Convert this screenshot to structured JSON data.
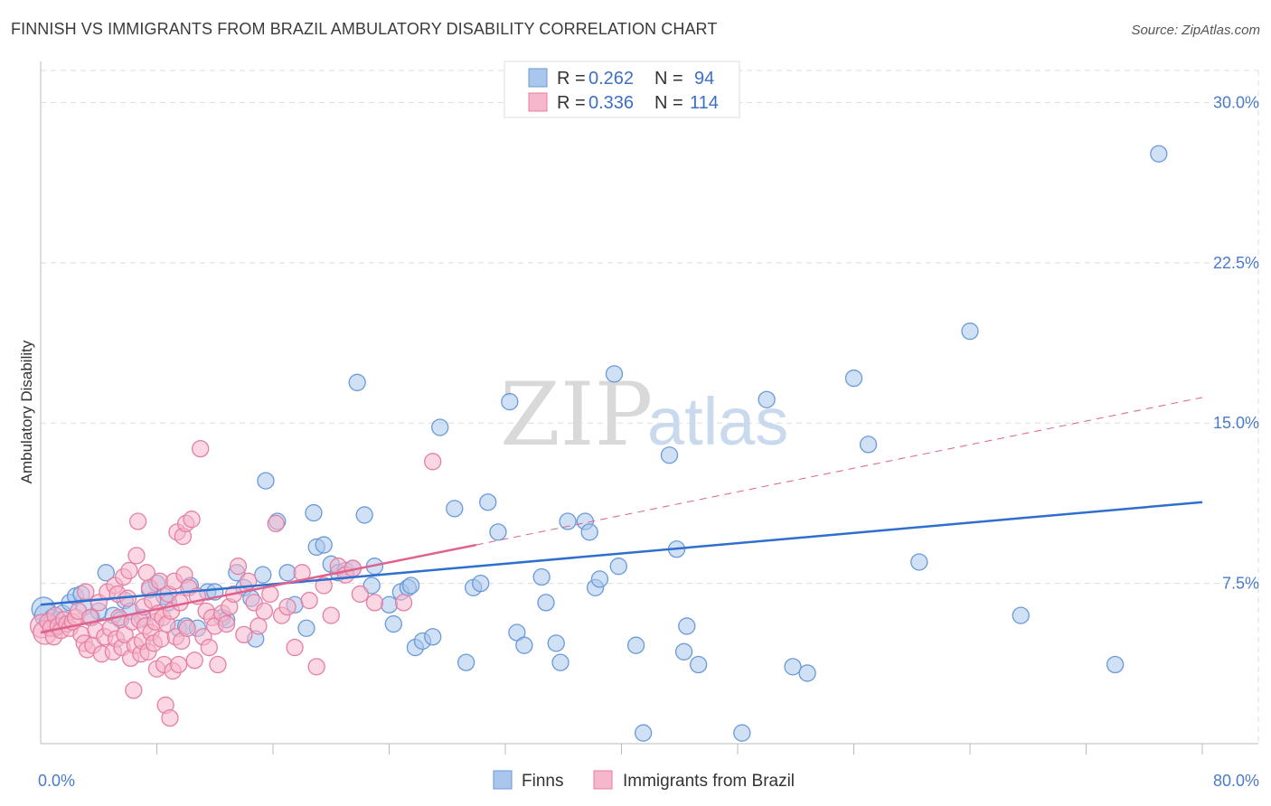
{
  "header": {
    "title": "FINNISH VS IMMIGRANTS FROM BRAZIL AMBULATORY DISABILITY CORRELATION CHART",
    "source": "Source: ZipAtlas.com"
  },
  "watermark": {
    "zip": "ZIP",
    "atlas": "atlas"
  },
  "colors": {
    "finns_fill": "#a9c6ec",
    "finns_stroke": "#6a9ad8",
    "finns_line": "#2f6fcd",
    "brazil_fill": "#f6b6cb",
    "brazil_stroke": "#e67fa3",
    "brazil_line": "#e0618e",
    "tick_text": "#4a7bc8",
    "grid": "#dddddd"
  },
  "chart_data": {
    "type": "scatter",
    "title": "FINNISH VS IMMIGRANTS FROM BRAZIL AMBULATORY DISABILITY CORRELATION CHART",
    "xlabel": "",
    "ylabel": "Ambulatory Disability",
    "xlim": [
      0,
      80
    ],
    "ylim": [
      0,
      31.5
    ],
    "x_tick_labels": [
      {
        "value": 0,
        "label": "0.0%"
      },
      {
        "value": 80,
        "label": "80.0%"
      }
    ],
    "y_ticks": [
      {
        "value": 7.5,
        "label": "7.5%"
      },
      {
        "value": 15.0,
        "label": "15.0%"
      },
      {
        "value": 22.5,
        "label": "22.5%"
      },
      {
        "value": 30.0,
        "label": "30.0%"
      }
    ],
    "x_minor_ticks": [
      8,
      16,
      24,
      32,
      40,
      48,
      56,
      64,
      72,
      80
    ],
    "grid": true,
    "legend_placement": "top-center",
    "legend": [
      {
        "r_label": "R =",
        "r_value": "0.262",
        "n_label": "N =",
        "n_value": "94"
      },
      {
        "r_label": "R =",
        "r_value": "0.336",
        "n_label": "N =",
        "n_value": "114"
      }
    ],
    "series": [
      {
        "name": "Finns",
        "trend": {
          "x": [
            0,
            80
          ],
          "y": [
            6.5,
            11.3
          ],
          "style": "solid"
        },
        "points": [
          [
            0.2,
            6.3
          ],
          [
            0.4,
            6.0
          ],
          [
            0.6,
            5.6
          ],
          [
            0.8,
            5.9
          ],
          [
            1.0,
            5.4
          ],
          [
            1.2,
            5.8
          ],
          [
            1.5,
            6.1
          ],
          [
            2.0,
            6.6
          ],
          [
            2.4,
            6.9
          ],
          [
            2.8,
            7.0
          ],
          [
            3.0,
            6.4
          ],
          [
            3.5,
            5.9
          ],
          [
            4.0,
            6.2
          ],
          [
            4.5,
            8.0
          ],
          [
            5.0,
            6.0
          ],
          [
            5.5,
            5.8
          ],
          [
            5.8,
            6.7
          ],
          [
            6.2,
            6.2
          ],
          [
            7.0,
            5.9
          ],
          [
            7.5,
            7.2
          ],
          [
            8.0,
            7.5
          ],
          [
            8.5,
            6.9
          ],
          [
            8.8,
            6.6
          ],
          [
            9.5,
            5.4
          ],
          [
            10.0,
            5.5
          ],
          [
            10.3,
            7.4
          ],
          [
            10.8,
            5.4
          ],
          [
            11.5,
            7.1
          ],
          [
            12.0,
            7.1
          ],
          [
            12.5,
            5.9
          ],
          [
            12.8,
            5.8
          ],
          [
            13.5,
            8.0
          ],
          [
            14.0,
            7.3
          ],
          [
            14.5,
            6.8
          ],
          [
            14.8,
            4.9
          ],
          [
            15.3,
            7.9
          ],
          [
            15.5,
            12.3
          ],
          [
            16.3,
            10.4
          ],
          [
            17.0,
            8.0
          ],
          [
            17.5,
            6.5
          ],
          [
            18.3,
            5.4
          ],
          [
            18.8,
            10.8
          ],
          [
            19.0,
            9.2
          ],
          [
            19.5,
            9.3
          ],
          [
            20.0,
            8.4
          ],
          [
            20.5,
            8.0
          ],
          [
            21.0,
            8.1
          ],
          [
            21.5,
            8.2
          ],
          [
            21.8,
            16.9
          ],
          [
            22.3,
            10.7
          ],
          [
            22.8,
            7.4
          ],
          [
            23.0,
            8.3
          ],
          [
            24.0,
            6.5
          ],
          [
            24.3,
            5.6
          ],
          [
            24.8,
            7.1
          ],
          [
            25.3,
            7.3
          ],
          [
            25.5,
            7.4
          ],
          [
            25.8,
            4.5
          ],
          [
            26.3,
            4.8
          ],
          [
            27.0,
            5.0
          ],
          [
            27.5,
            14.8
          ],
          [
            28.5,
            11.0
          ],
          [
            29.3,
            3.8
          ],
          [
            29.8,
            7.3
          ],
          [
            30.3,
            7.5
          ],
          [
            30.8,
            11.3
          ],
          [
            31.5,
            9.9
          ],
          [
            32.3,
            16.0
          ],
          [
            32.8,
            5.2
          ],
          [
            33.3,
            4.6
          ],
          [
            34.5,
            7.8
          ],
          [
            34.8,
            6.6
          ],
          [
            35.5,
            4.7
          ],
          [
            35.8,
            3.8
          ],
          [
            36.3,
            10.4
          ],
          [
            37.5,
            10.4
          ],
          [
            37.8,
            9.9
          ],
          [
            38.2,
            7.3
          ],
          [
            38.5,
            7.7
          ],
          [
            39.5,
            17.3
          ],
          [
            39.8,
            8.3
          ],
          [
            41.0,
            4.6
          ],
          [
            41.5,
            0.5
          ],
          [
            43.3,
            13.5
          ],
          [
            43.8,
            9.1
          ],
          [
            44.3,
            4.3
          ],
          [
            44.5,
            5.5
          ],
          [
            45.3,
            3.7
          ],
          [
            48.3,
            0.5
          ],
          [
            50.0,
            16.1
          ],
          [
            51.8,
            3.6
          ],
          [
            52.8,
            3.3
          ],
          [
            56.0,
            17.1
          ],
          [
            57.0,
            14.0
          ],
          [
            60.5,
            8.5
          ],
          [
            64.0,
            19.3
          ],
          [
            67.5,
            6.0
          ],
          [
            74.0,
            3.7
          ],
          [
            77.0,
            27.6
          ]
        ]
      },
      {
        "name": "Immigrants from Brazil",
        "trend": {
          "x": [
            0,
            30
          ],
          "y": [
            5.2,
            9.3
          ],
          "style": "solid"
        },
        "trend_extension": {
          "x": [
            30,
            80
          ],
          "y": [
            9.3,
            16.2
          ],
          "style": "dashed"
        },
        "points": [
          [
            0.1,
            5.5
          ],
          [
            0.3,
            5.2
          ],
          [
            0.5,
            5.7
          ],
          [
            0.7,
            5.4
          ],
          [
            0.9,
            5.0
          ],
          [
            1.0,
            6.0
          ],
          [
            1.2,
            5.5
          ],
          [
            1.4,
            5.3
          ],
          [
            1.6,
            5.8
          ],
          [
            1.8,
            5.6
          ],
          [
            2.0,
            5.4
          ],
          [
            2.2,
            5.7
          ],
          [
            2.4,
            5.9
          ],
          [
            2.6,
            6.2
          ],
          [
            2.8,
            5.1
          ],
          [
            3.0,
            4.7
          ],
          [
            3.1,
            7.1
          ],
          [
            3.2,
            4.4
          ],
          [
            3.4,
            5.9
          ],
          [
            3.6,
            4.6
          ],
          [
            3.8,
            5.3
          ],
          [
            4.0,
            6.6
          ],
          [
            4.2,
            4.2
          ],
          [
            4.4,
            5.0
          ],
          [
            4.6,
            7.1
          ],
          [
            4.8,
            5.4
          ],
          [
            5.0,
            4.3
          ],
          [
            5.1,
            7.4
          ],
          [
            5.2,
            4.9
          ],
          [
            5.3,
            7.0
          ],
          [
            5.4,
            5.9
          ],
          [
            5.6,
            4.5
          ],
          [
            5.7,
            7.8
          ],
          [
            5.8,
            5.1
          ],
          [
            6.0,
            6.8
          ],
          [
            6.1,
            8.1
          ],
          [
            6.2,
            4.0
          ],
          [
            6.3,
            5.7
          ],
          [
            6.4,
            2.5
          ],
          [
            6.5,
            4.6
          ],
          [
            6.6,
            8.8
          ],
          [
            6.7,
            10.4
          ],
          [
            6.8,
            5.8
          ],
          [
            6.9,
            4.2
          ],
          [
            7.0,
            4.8
          ],
          [
            7.1,
            6.4
          ],
          [
            7.2,
            5.5
          ],
          [
            7.3,
            8.0
          ],
          [
            7.4,
            4.3
          ],
          [
            7.5,
            7.3
          ],
          [
            7.6,
            5.2
          ],
          [
            7.7,
            6.7
          ],
          [
            7.8,
            4.7
          ],
          [
            7.9,
            5.7
          ],
          [
            8.0,
            3.5
          ],
          [
            8.1,
            6.1
          ],
          [
            8.2,
            7.6
          ],
          [
            8.3,
            4.9
          ],
          [
            8.4,
            5.9
          ],
          [
            8.5,
            3.7
          ],
          [
            8.6,
            1.8
          ],
          [
            8.7,
            5.6
          ],
          [
            8.8,
            7.0
          ],
          [
            8.9,
            1.2
          ],
          [
            9.0,
            6.2
          ],
          [
            9.1,
            3.4
          ],
          [
            9.2,
            7.6
          ],
          [
            9.3,
            5.0
          ],
          [
            9.4,
            9.9
          ],
          [
            9.5,
            3.7
          ],
          [
            9.6,
            6.6
          ],
          [
            9.7,
            4.8
          ],
          [
            9.8,
            9.7
          ],
          [
            9.9,
            7.9
          ],
          [
            10.0,
            10.3
          ],
          [
            10.1,
            5.4
          ],
          [
            10.2,
            7.3
          ],
          [
            10.4,
            10.5
          ],
          [
            10.6,
            3.9
          ],
          [
            10.8,
            6.9
          ],
          [
            11.0,
            13.8
          ],
          [
            11.2,
            5.0
          ],
          [
            11.4,
            6.2
          ],
          [
            11.6,
            4.5
          ],
          [
            11.8,
            5.9
          ],
          [
            12.0,
            5.5
          ],
          [
            12.2,
            3.7
          ],
          [
            12.5,
            6.1
          ],
          [
            12.8,
            5.6
          ],
          [
            13.0,
            6.4
          ],
          [
            13.3,
            7.0
          ],
          [
            13.6,
            8.3
          ],
          [
            14.0,
            5.1
          ],
          [
            14.3,
            7.6
          ],
          [
            14.7,
            6.6
          ],
          [
            15.0,
            5.5
          ],
          [
            15.4,
            6.2
          ],
          [
            15.8,
            7.0
          ],
          [
            16.2,
            10.3
          ],
          [
            16.6,
            6.0
          ],
          [
            17.0,
            6.4
          ],
          [
            17.5,
            4.5
          ],
          [
            18.0,
            8.0
          ],
          [
            18.5,
            6.7
          ],
          [
            19.0,
            3.6
          ],
          [
            19.5,
            7.4
          ],
          [
            20.0,
            6.0
          ],
          [
            20.5,
            8.3
          ],
          [
            21.0,
            7.9
          ],
          [
            21.5,
            8.2
          ],
          [
            22.0,
            7.0
          ],
          [
            23.0,
            6.6
          ],
          [
            25.0,
            6.6
          ],
          [
            27.0,
            13.2
          ]
        ]
      }
    ]
  },
  "bottom_legend": [
    {
      "label": "Finns"
    },
    {
      "label": "Immigrants from Brazil"
    }
  ]
}
